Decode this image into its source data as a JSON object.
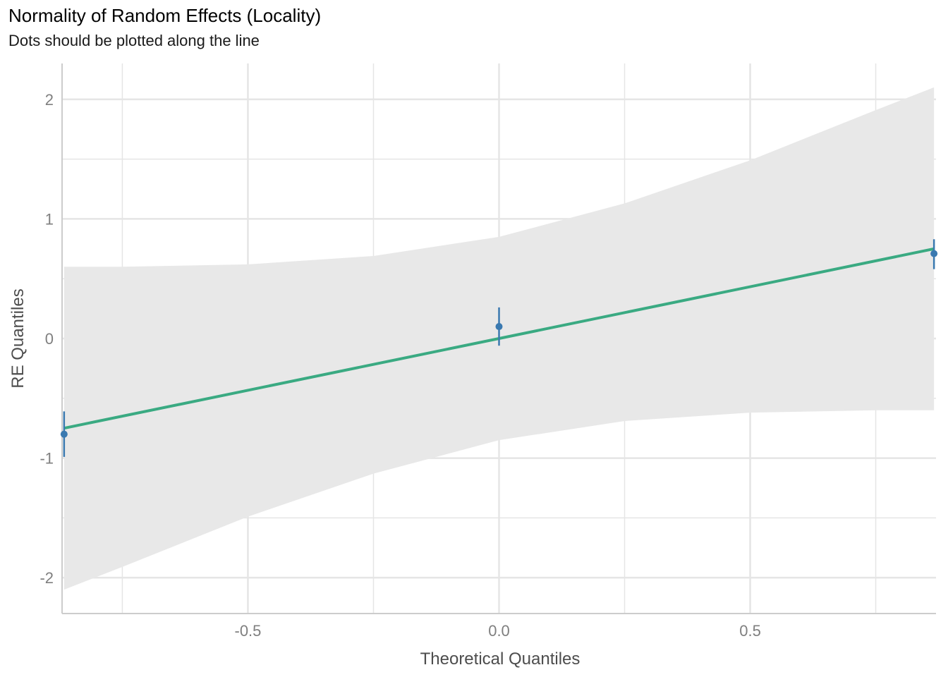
{
  "chart_data": {
    "type": "scatter",
    "title": "Normality of Random Effects (Locality)",
    "subtitle": "Dots should be plotted along the line",
    "xlabel": "Theoretical Quantiles",
    "ylabel": "RE Quantiles",
    "xlim": [
      -0.87,
      0.87
    ],
    "ylim": [
      -2.3,
      2.3
    ],
    "x_ticks": [
      -0.5,
      0.0,
      0.5
    ],
    "x_tick_labels": [
      "-0.5",
      "0.0",
      "0.5"
    ],
    "x_minor": [
      -0.75,
      -0.25,
      0.25,
      0.75
    ],
    "y_ticks": [
      -2,
      -1,
      0,
      1,
      2
    ],
    "y_tick_labels": [
      "-2",
      "-1",
      "0",
      "1",
      "2"
    ],
    "y_minor": [
      -1.5,
      -0.5,
      0.5,
      1.5
    ],
    "grid": true,
    "points": [
      {
        "x": -0.866,
        "y": -0.8,
        "ymin": -0.99,
        "ymax": -0.61
      },
      {
        "x": 0.0,
        "y": 0.1,
        "ymin": -0.06,
        "ymax": 0.26
      },
      {
        "x": 0.866,
        "y": 0.71,
        "ymin": 0.58,
        "ymax": 0.83
      }
    ],
    "fit_line": {
      "slope": 0.866,
      "intercept": 0.0,
      "x_range": [
        -0.866,
        0.866
      ]
    },
    "confidence_band": {
      "x": [
        -0.866,
        -0.75,
        -0.5,
        -0.25,
        0.0,
        0.25,
        0.5,
        0.75,
        0.866
      ],
      "upper": [
        0.6,
        0.6,
        0.62,
        0.69,
        0.85,
        1.13,
        1.49,
        1.91,
        2.1
      ],
      "lower": [
        -2.1,
        -1.91,
        -1.49,
        -1.13,
        -0.85,
        -0.69,
        -0.62,
        -0.6,
        -0.6
      ]
    },
    "colors": {
      "points": "#3a79b0",
      "fit_line": "#3aaa82",
      "band": "#e8e8e8",
      "grid": "#e5e5e5",
      "axis": "#cccccc"
    }
  }
}
